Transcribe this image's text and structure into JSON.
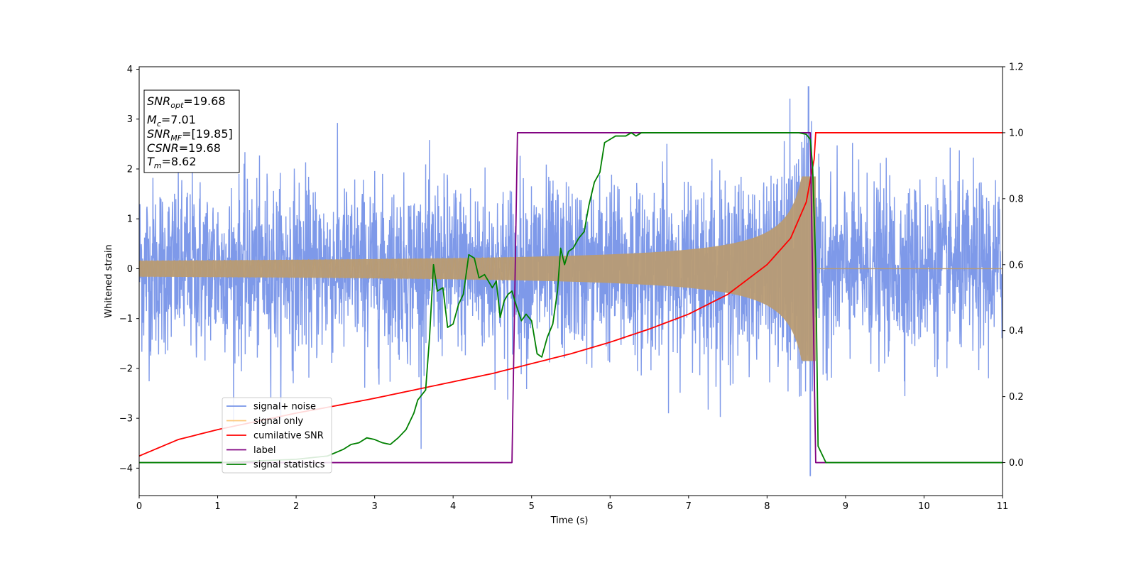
{
  "chart_data": {
    "type": "line",
    "xlabel": "Time (s)",
    "ylabel": "Whitened strain",
    "xlim": [
      0,
      11
    ],
    "ylim": [
      -4.55,
      4.05
    ],
    "y2lim": [
      -0.1,
      1.2
    ],
    "x_ticks": [
      0,
      1,
      2,
      3,
      4,
      5,
      6,
      7,
      8,
      9,
      10,
      11
    ],
    "y_ticks": [
      -4,
      -3,
      -2,
      -1,
      0,
      1,
      2,
      3,
      4
    ],
    "y_tick_labels": [
      "−4",
      "−3",
      "−2",
      "−1",
      "0",
      "1",
      "2",
      "3",
      "4"
    ],
    "y2_ticks": [
      0.0,
      0.2,
      0.4,
      0.6,
      0.8,
      1.0,
      1.2
    ],
    "y2_tick_labels": [
      "0.0",
      "0.2",
      "0.4",
      "0.6",
      "0.8",
      "1.0",
      "1.2"
    ],
    "grid": false,
    "legend_position": "lower-left",
    "annotation": {
      "lines": [
        {
          "var": "SNR",
          "sub": "opt",
          "value": "=19.68"
        },
        {
          "var": "M",
          "sub": "c",
          "value": "=7.01"
        },
        {
          "var": "SNR",
          "sub": "MF",
          "value": "=[19.85]"
        },
        {
          "var": "CSNR",
          "sub": "",
          "value": "=19.68"
        },
        {
          "var": "T",
          "sub": "m",
          "value": "=8.62"
        }
      ]
    },
    "merger_time": 8.62,
    "series": [
      {
        "name": "signal+ noise",
        "color": "#7794e8",
        "axis": "left",
        "noise_std": 0.85,
        "peak_max": 3.65,
        "peak_min": -4.15
      },
      {
        "name": "signal only",
        "color": "#fdc97a",
        "axis": "left",
        "amp_start": 0.08,
        "amp_end": 1.85,
        "overlap_color": "#b89b74"
      },
      {
        "name": "cumilative SNR",
        "color": "#ff0000",
        "axis": "right",
        "x": [
          0,
          0.5,
          1,
          1.5,
          2,
          2.5,
          3,
          3.5,
          4,
          4.5,
          5,
          5.5,
          6,
          6.5,
          7,
          7.5,
          8,
          8.3,
          8.5,
          8.6,
          8.62,
          11
        ],
        "y": [
          0.02,
          0.07,
          0.1,
          0.125,
          0.15,
          0.172,
          0.195,
          0.22,
          0.245,
          0.27,
          0.3,
          0.33,
          0.365,
          0.405,
          0.45,
          0.51,
          0.6,
          0.68,
          0.79,
          0.92,
          1.0,
          1.0
        ]
      },
      {
        "name": "label",
        "color": "#800080",
        "axis": "right",
        "x": [
          0,
          4.75,
          4.82,
          8.55,
          8.62,
          11
        ],
        "y": [
          0,
          0,
          1,
          1,
          0,
          0
        ]
      },
      {
        "name": "signal statistics",
        "color": "#008000",
        "axis": "right",
        "x": [
          0,
          1,
          2,
          2.4,
          2.6,
          2.7,
          2.8,
          2.9,
          3.0,
          3.1,
          3.2,
          3.3,
          3.4,
          3.5,
          3.55,
          3.65,
          3.7,
          3.75,
          3.8,
          3.87,
          3.93,
          4.0,
          4.07,
          4.13,
          4.2,
          4.27,
          4.33,
          4.4,
          4.5,
          4.55,
          4.6,
          4.65,
          4.7,
          4.75,
          4.8,
          4.87,
          4.93,
          5.0,
          5.07,
          5.13,
          5.2,
          5.27,
          5.33,
          5.37,
          5.42,
          5.47,
          5.53,
          5.6,
          5.67,
          5.73,
          5.8,
          5.87,
          5.93,
          6.0,
          6.07,
          6.13,
          6.2,
          6.27,
          6.33,
          6.4,
          6.5,
          6.7,
          7.0,
          7.5,
          8.0,
          8.4,
          8.5,
          8.55,
          8.58,
          8.62,
          8.65,
          8.75,
          9,
          11
        ],
        "y": [
          0,
          0,
          0.01,
          0.02,
          0.04,
          0.055,
          0.06,
          0.075,
          0.07,
          0.06,
          0.055,
          0.075,
          0.1,
          0.15,
          0.19,
          0.22,
          0.38,
          0.6,
          0.52,
          0.53,
          0.41,
          0.42,
          0.48,
          0.51,
          0.63,
          0.62,
          0.56,
          0.57,
          0.53,
          0.55,
          0.44,
          0.49,
          0.51,
          0.52,
          0.48,
          0.43,
          0.45,
          0.43,
          0.33,
          0.32,
          0.38,
          0.42,
          0.52,
          0.65,
          0.6,
          0.64,
          0.65,
          0.68,
          0.7,
          0.78,
          0.85,
          0.88,
          0.97,
          0.98,
          0.99,
          0.99,
          0.99,
          1.0,
          0.99,
          1.0,
          1.0,
          1.0,
          1.0,
          1.0,
          1.0,
          1.0,
          0.995,
          0.98,
          0.9,
          0.6,
          0.05,
          0.0,
          0.0,
          0.0
        ]
      }
    ]
  }
}
